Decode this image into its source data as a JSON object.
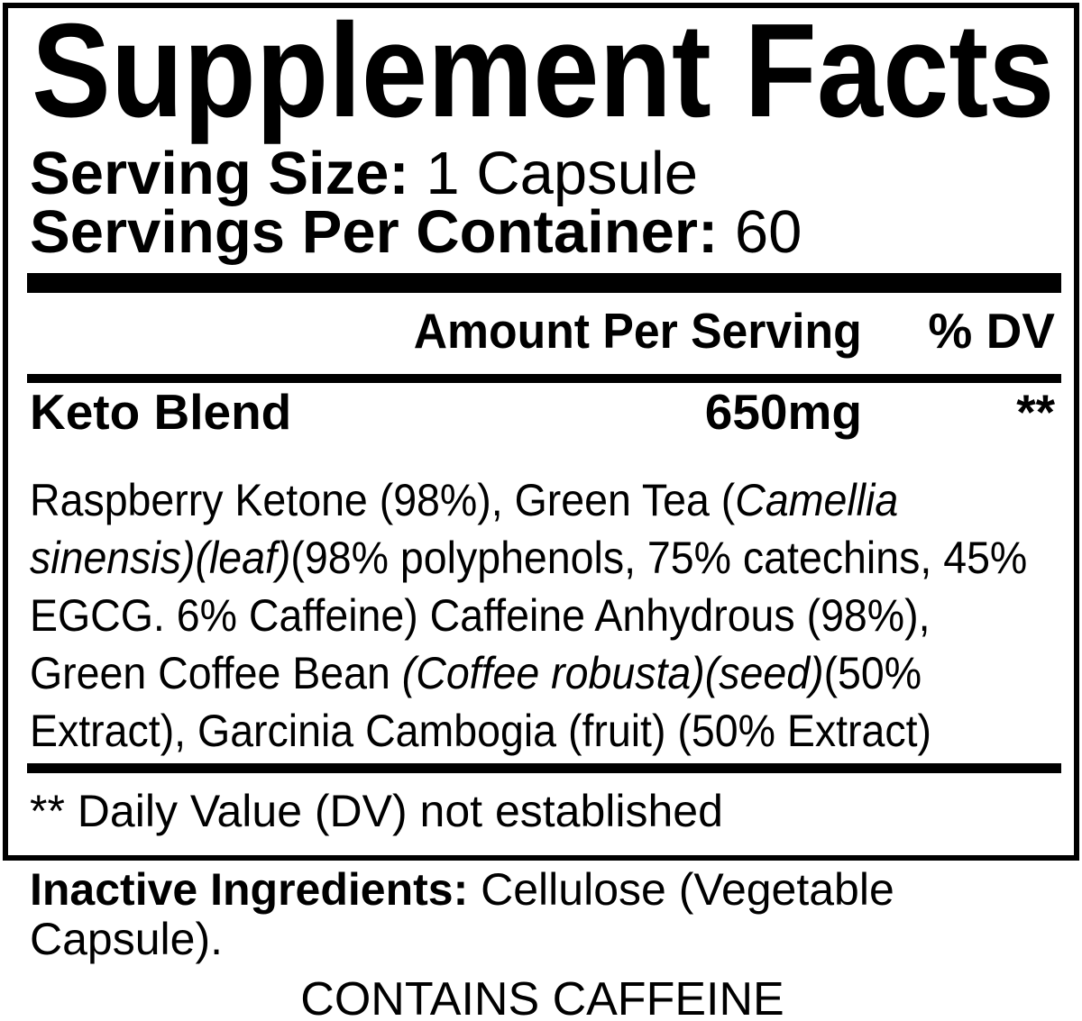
{
  "label": {
    "title": "Supplement Facts",
    "serving_size": {
      "label": "Serving Size:",
      "value": "1 Capsule"
    },
    "servings_per_container": {
      "label": "Servings Per Container:",
      "value": "60"
    },
    "header": {
      "amount": "Amount Per Serving",
      "dv": "% DV"
    },
    "rows": [
      {
        "name": "Keto Blend",
        "amount": "650mg",
        "dv": "**"
      }
    ],
    "blend_description_lines": [
      [
        {
          "t": "Raspberry Ketone (98%), Green Tea ("
        },
        {
          "t": "Camellia",
          "i": true
        }
      ],
      [
        {
          "t": "sinensis)(leaf)",
          "i": true
        },
        {
          "t": "(98% polyphenols, 75% catechins, 45%"
        }
      ],
      [
        {
          "t": "EGCG. 6% Caffeine) Caffeine Anhydrous (98%),"
        }
      ],
      [
        {
          "t": "Green Coffee Bean "
        },
        {
          "t": "(Coffee robusta)(seed)",
          "i": true
        },
        {
          "t": "(50%"
        }
      ],
      [
        {
          "t": "Extract), Garcinia Cambogia (fruit) (50% Extract)"
        }
      ]
    ],
    "footnote": "** Daily Value (DV) not established",
    "inactive_ingredients": {
      "label": "Inactive Ingredients:",
      "value": "Cellulose (Vegetable Capsule)."
    },
    "contains_statement": "CONTAINS CAFFEINE",
    "colors": {
      "ink": "#000000",
      "background": "#ffffff"
    }
  }
}
